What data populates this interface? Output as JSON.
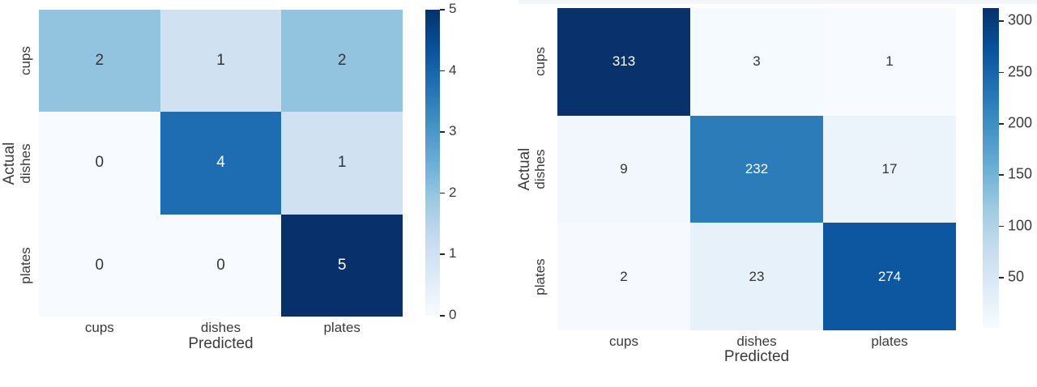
{
  "page": {
    "background": "#ffffff"
  },
  "chart_data": [
    {
      "type": "heatmap",
      "name": "confusion-matrix-small",
      "title": "",
      "xlabel": "Predicted",
      "ylabel": "Actual",
      "x_categories": [
        "cups",
        "dishes",
        "plates"
      ],
      "y_categories": [
        "cups",
        "dishes",
        "plates"
      ],
      "values": [
        [
          2,
          1,
          2
        ],
        [
          0,
          4,
          1
        ],
        [
          0,
          0,
          5
        ]
      ],
      "cell_colors": [
        [
          "#93c4df",
          "#d0e2f2",
          "#93c4df"
        ],
        [
          "#f7fbff",
          "#1e6db2",
          "#d0e2f2"
        ],
        [
          "#f7fbff",
          "#f7fbff",
          "#08306b"
        ]
      ],
      "vmin": 0,
      "vmax": 5,
      "colorbar_ticks": [
        0,
        1,
        2,
        3,
        4,
        5
      ],
      "colormap": "Blues",
      "colormap_stops": [
        "#f7fbff",
        "#deebf7",
        "#c6dbef",
        "#9ecae1",
        "#6baed6",
        "#4292c6",
        "#2171b5",
        "#08519c",
        "#08306b"
      ],
      "annot_dark_text": "#343434",
      "annot_light_text": "#ffffff",
      "legend_position": "right-colorbar",
      "grid": false
    },
    {
      "type": "heatmap",
      "name": "confusion-matrix-large",
      "title": "",
      "xlabel": "Predicted",
      "ylabel": "Actual",
      "x_categories": [
        "cups",
        "dishes",
        "plates"
      ],
      "y_categories": [
        "cups",
        "dishes",
        "plates"
      ],
      "values": [
        [
          313,
          3,
          1
        ],
        [
          9,
          232,
          17
        ],
        [
          2,
          23,
          274
        ]
      ],
      "cell_colors": [
        [
          "#09316b",
          "#f5fafe",
          "#f7fbff"
        ],
        [
          "#f1f7fd",
          "#2d7cba",
          "#ecf4fb"
        ],
        [
          "#f6fafe",
          "#e7f1fa",
          "#0d57a1"
        ]
      ],
      "vmin": 1,
      "vmax": 313,
      "colorbar_ticks": [
        50,
        100,
        150,
        200,
        250,
        300
      ],
      "colormap": "Blues",
      "colormap_stops": [
        "#f7fbff",
        "#deebf7",
        "#c6dbef",
        "#9ecae1",
        "#6baed6",
        "#4292c6",
        "#2171b5",
        "#08519c",
        "#08306b"
      ],
      "annot_dark_text": "#343434",
      "annot_light_text": "#ffffff",
      "legend_position": "right-colorbar",
      "grid": false
    }
  ]
}
